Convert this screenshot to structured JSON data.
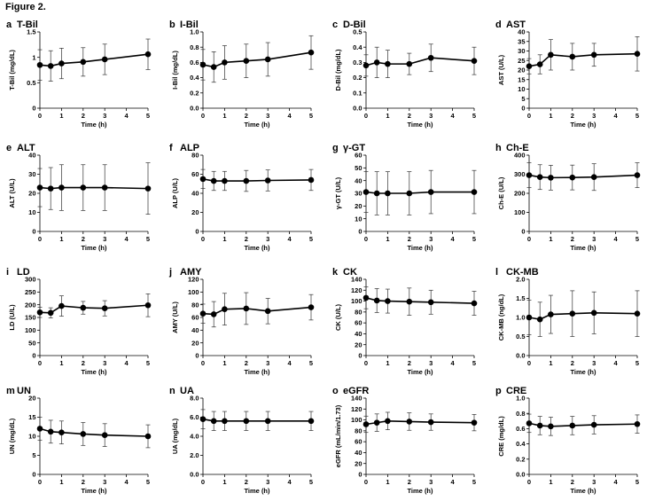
{
  "figure_title": "Figure 2.",
  "chart_data": [
    {
      "type": "line",
      "letter": "a",
      "title": "T-Bil",
      "ylabel": "T-Bil (mg/dL)",
      "xlabel": "Time (h)",
      "x": [
        0,
        0.5,
        1,
        2,
        3,
        5
      ],
      "y": [
        0.85,
        0.83,
        0.88,
        0.91,
        0.96,
        1.06
      ],
      "err": [
        0.3,
        0.3,
        0.3,
        0.28,
        0.3,
        0.3
      ],
      "ylim": [
        0,
        1.5
      ],
      "yticks": [
        "0",
        "0.5",
        "1",
        "1.5"
      ],
      "ytick_values": [
        0,
        0.5,
        1,
        1.5
      ],
      "xticks": [
        0,
        1,
        2,
        3,
        4,
        5
      ]
    },
    {
      "type": "line",
      "letter": "b",
      "title": "I-Bil",
      "ylabel": "I-Bil (mg/dL)",
      "xlabel": "Time (h)",
      "x": [
        0,
        0.5,
        1,
        2,
        3,
        5
      ],
      "y": [
        0.57,
        0.54,
        0.6,
        0.62,
        0.64,
        0.73
      ],
      "err": [
        0.2,
        0.2,
        0.22,
        0.22,
        0.22,
        0.22
      ],
      "ylim": [
        0,
        1.0
      ],
      "yticks": [
        "0.0",
        "0.2",
        "0.4",
        "0.6",
        "0.8",
        "1.0"
      ],
      "ytick_values": [
        0,
        0.2,
        0.4,
        0.6,
        0.8,
        1.0
      ],
      "xticks": [
        0,
        1,
        2,
        3,
        4,
        5
      ]
    },
    {
      "type": "line",
      "letter": "c",
      "title": "D-Bil",
      "ylabel": "D-Bil (mg/dL)",
      "xlabel": "Time (h)",
      "x": [
        0,
        0.5,
        1,
        2,
        3,
        5
      ],
      "y": [
        0.28,
        0.3,
        0.29,
        0.29,
        0.33,
        0.31
      ],
      "err": [
        0.07,
        0.1,
        0.09,
        0.07,
        0.09,
        0.09
      ],
      "ylim": [
        0,
        0.5
      ],
      "yticks": [
        "0.0",
        "0.1",
        "0.2",
        "0.3",
        "0.4",
        "0.5"
      ],
      "ytick_values": [
        0,
        0.1,
        0.2,
        0.3,
        0.4,
        0.5
      ],
      "xticks": [
        0,
        1,
        2,
        3,
        4,
        5
      ]
    },
    {
      "type": "line",
      "letter": "d",
      "title": "AST",
      "ylabel": "AST (U/L)",
      "xlabel": "Time (h)",
      "x": [
        0,
        0.5,
        1,
        2,
        3,
        5
      ],
      "y": [
        22,
        23,
        28,
        27,
        28,
        28.5
      ],
      "err": [
        4,
        5,
        8,
        7,
        6,
        9
      ],
      "ylim": [
        0,
        40
      ],
      "yticks": [
        "0",
        "5",
        "10",
        "15",
        "20",
        "25",
        "30",
        "35",
        "40"
      ],
      "ytick_values": [
        0,
        5,
        10,
        15,
        20,
        25,
        30,
        35,
        40
      ],
      "xticks": [
        0,
        1,
        2,
        3,
        4,
        5
      ]
    },
    {
      "type": "line",
      "letter": "e",
      "title": "ALT",
      "ylabel": "ALT (U/L)",
      "xlabel": "Time (h)",
      "x": [
        0,
        0.5,
        1,
        2,
        3,
        5
      ],
      "y": [
        23,
        22.5,
        23,
        23,
        23,
        22.5
      ],
      "err": [
        10,
        11,
        12,
        12,
        12,
        13.5
      ],
      "ylim": [
        0,
        40
      ],
      "yticks": [
        "0",
        "10",
        "20",
        "30",
        "40"
      ],
      "ytick_values": [
        0,
        10,
        20,
        30,
        40
      ],
      "xticks": [
        0,
        1,
        2,
        3,
        4,
        5
      ]
    },
    {
      "type": "line",
      "letter": "f",
      "title": "ALP",
      "ylabel": "ALP (U/L)",
      "xlabel": "Time (h)",
      "x": [
        0,
        0.5,
        1,
        2,
        3,
        5
      ],
      "y": [
        55,
        53,
        53,
        53,
        53.5,
        54
      ],
      "err": [
        10,
        10,
        10,
        11,
        11,
        11
      ],
      "ylim": [
        0,
        80
      ],
      "yticks": [
        "0",
        "20",
        "40",
        "60",
        "80"
      ],
      "ytick_values": [
        0,
        20,
        40,
        60,
        80
      ],
      "xticks": [
        0,
        1,
        2,
        3,
        4,
        5
      ]
    },
    {
      "type": "line",
      "letter": "g",
      "title": "γ-GT",
      "ylabel": "γ-GT (U/L)",
      "xlabel": "Time (h)",
      "x": [
        0,
        0.5,
        1,
        2,
        3,
        5
      ],
      "y": [
        31,
        30,
        30,
        30,
        31,
        31
      ],
      "err": [
        16,
        17,
        17,
        17,
        17,
        17
      ],
      "ylim": [
        0,
        60
      ],
      "yticks": [
        "0",
        "10",
        "20",
        "30",
        "40",
        "50",
        "60"
      ],
      "ytick_values": [
        0,
        10,
        20,
        30,
        40,
        50,
        60
      ],
      "xticks": [
        0,
        1,
        2,
        3,
        4,
        5
      ]
    },
    {
      "type": "line",
      "letter": "h",
      "title": "Ch-E",
      "ylabel": "Ch-E (U/L)",
      "xlabel": "Time (h)",
      "x": [
        0,
        0.5,
        1,
        2,
        3,
        5
      ],
      "y": [
        295,
        285,
        282,
        283,
        285,
        295
      ],
      "err": [
        65,
        65,
        65,
        65,
        70,
        65
      ],
      "ylim": [
        0,
        400
      ],
      "yticks": [
        "0",
        "100",
        "200",
        "300",
        "400"
      ],
      "ytick_values": [
        0,
        100,
        200,
        300,
        400
      ],
      "xticks": [
        0,
        1,
        2,
        3,
        4,
        5
      ]
    },
    {
      "type": "line",
      "letter": "i",
      "title": "LD",
      "ylabel": "LD (U/L)",
      "xlabel": "Time (h)",
      "x": [
        0,
        0.5,
        1,
        2,
        3,
        5
      ],
      "y": [
        170,
        168,
        195,
        188,
        186,
        198
      ],
      "err": [
        20,
        20,
        40,
        25,
        30,
        45
      ],
      "ylim": [
        0,
        300
      ],
      "yticks": [
        "0",
        "50",
        "100",
        "150",
        "200",
        "250",
        "300"
      ],
      "ytick_values": [
        0,
        50,
        100,
        150,
        200,
        250,
        300
      ],
      "xticks": [
        0,
        1,
        2,
        3,
        4,
        5
      ]
    },
    {
      "type": "line",
      "letter": "j",
      "title": "AMY",
      "ylabel": "AMY (U/L)",
      "xlabel": "Time (h)",
      "x": [
        0,
        0.5,
        1,
        2,
        3,
        5
      ],
      "y": [
        66,
        65,
        73,
        74,
        70,
        76
      ],
      "err": [
        15,
        20,
        25,
        25,
        20,
        20
      ],
      "ylim": [
        0,
        120
      ],
      "yticks": [
        "0",
        "20",
        "40",
        "60",
        "80",
        "100",
        "120"
      ],
      "ytick_values": [
        0,
        20,
        40,
        60,
        80,
        100,
        120
      ],
      "xticks": [
        0,
        1,
        2,
        3,
        4,
        5
      ]
    },
    {
      "type": "line",
      "letter": "k",
      "title": "CK",
      "ylabel": "CK (U/L)",
      "xlabel": "Time (h)",
      "x": [
        0,
        0.5,
        1,
        2,
        3,
        5
      ],
      "y": [
        106,
        101,
        100,
        99,
        98,
        96
      ],
      "err": [
        20,
        22,
        22,
        25,
        22,
        22
      ],
      "ylim": [
        0,
        140
      ],
      "yticks": [
        "0",
        "20",
        "40",
        "60",
        "80",
        "100",
        "120",
        "140"
      ],
      "ytick_values": [
        0,
        20,
        40,
        60,
        80,
        100,
        120,
        140
      ],
      "xticks": [
        0,
        1,
        2,
        3,
        4,
        5
      ]
    },
    {
      "type": "line",
      "letter": "l",
      "title": "CK-MB",
      "ylabel": "CK-MB (ng/dL)",
      "xlabel": "Time (h)",
      "x": [
        0,
        0.5,
        1,
        2,
        3,
        5
      ],
      "y": [
        1.0,
        0.95,
        1.08,
        1.1,
        1.12,
        1.1
      ],
      "err": [
        0.45,
        0.45,
        0.5,
        0.6,
        0.55,
        0.6
      ],
      "ylim": [
        0,
        2.0
      ],
      "yticks": [
        "0.0",
        "0.5",
        "1.0",
        "1.5",
        "2.0"
      ],
      "ytick_values": [
        0,
        0.5,
        1.0,
        1.5,
        2.0
      ],
      "xticks": [
        0,
        1,
        2,
        3,
        4,
        5
      ]
    },
    {
      "type": "line",
      "letter": "m",
      "title": "UN",
      "ylabel": "UN (mg/dL)",
      "xlabel": "Time (h)",
      "x": [
        0,
        0.5,
        1,
        2,
        3,
        5
      ],
      "y": [
        12,
        11.2,
        11,
        10.6,
        10.3,
        10
      ],
      "err": [
        3,
        3,
        3,
        3,
        3,
        3
      ],
      "ylim": [
        0,
        20
      ],
      "yticks": [
        "0",
        "5",
        "10",
        "15",
        "20"
      ],
      "ytick_values": [
        0,
        5,
        10,
        15,
        20
      ],
      "xticks": [
        0,
        1,
        2,
        3,
        4,
        5
      ]
    },
    {
      "type": "line",
      "letter": "n",
      "title": "UA",
      "ylabel": "UA (mg/dL)",
      "xlabel": "Time (h)",
      "x": [
        0,
        0.5,
        1,
        2,
        3,
        5
      ],
      "y": [
        5.8,
        5.6,
        5.6,
        5.6,
        5.6,
        5.6
      ],
      "err": [
        1,
        1,
        1,
        1,
        1,
        1
      ],
      "ylim": [
        0,
        8
      ],
      "yticks": [
        "0.0",
        "2.0",
        "4.0",
        "6.0",
        "8.0"
      ],
      "ytick_values": [
        0,
        2,
        4,
        6,
        8
      ],
      "xticks": [
        0,
        1,
        2,
        3,
        4,
        5
      ]
    },
    {
      "type": "line",
      "letter": "o",
      "title": "eGFR",
      "ylabel": "eGFR (mL/min/1.73)",
      "xlabel": "Time (h)",
      "x": [
        0,
        0.5,
        1,
        2,
        3,
        5
      ],
      "y": [
        92,
        95,
        98,
        97,
        96,
        95
      ],
      "err": [
        15,
        16,
        16,
        16,
        15,
        15
      ],
      "ylim": [
        0,
        140
      ],
      "yticks": [
        "0",
        "20",
        "40",
        "60",
        "80",
        "100",
        "120",
        "140"
      ],
      "ytick_values": [
        0,
        20,
        40,
        60,
        80,
        100,
        120,
        140
      ],
      "xticks": [
        0,
        1,
        2,
        3,
        4,
        5
      ]
    },
    {
      "type": "line",
      "letter": "p",
      "title": "CRE",
      "ylabel": "CRE (mg/dL)",
      "xlabel": "Time (h)",
      "x": [
        0,
        0.5,
        1,
        2,
        3,
        5
      ],
      "y": [
        0.67,
        0.64,
        0.63,
        0.64,
        0.65,
        0.66
      ],
      "err": [
        0.12,
        0.12,
        0.12,
        0.12,
        0.12,
        0.12
      ],
      "ylim": [
        0,
        1.0
      ],
      "yticks": [
        "0.0",
        "0.2",
        "0.4",
        "0.6",
        "0.8",
        "1.0"
      ],
      "ytick_values": [
        0,
        0.2,
        0.4,
        0.6,
        0.8,
        1.0
      ],
      "xticks": [
        0,
        1,
        2,
        3,
        4,
        5
      ]
    }
  ]
}
